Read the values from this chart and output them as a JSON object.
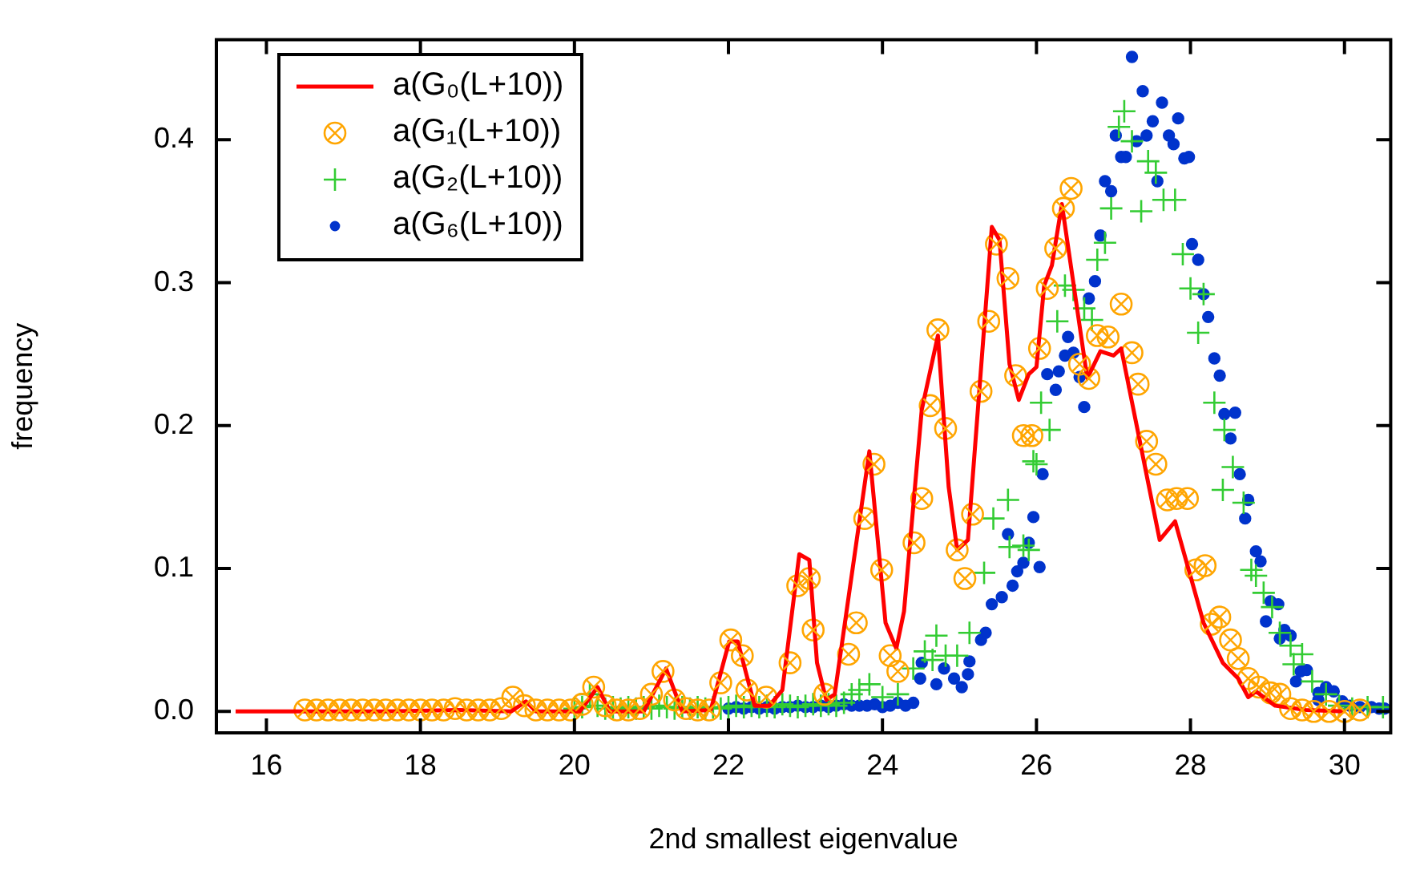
{
  "chart_data": {
    "type": "scatter",
    "xlabel": "2nd smallest eigenvalue",
    "ylabel": "frequency",
    "xlim": [
      15.35,
      30.6
    ],
    "ylim": [
      -0.015,
      0.47
    ],
    "xticks": [
      16,
      18,
      20,
      22,
      24,
      26,
      28,
      30
    ],
    "yticks": [
      {
        "value": 0,
        "label": "0.0"
      },
      0.1,
      0.2,
      0.3,
      0.4
    ],
    "grid": false,
    "legend": "top left",
    "series": [
      {
        "name": "a(G₀(L+10))",
        "type": "line",
        "color": "#ff0000",
        "marker": "none",
        "line_style": "solid",
        "x": [
          15.6,
          16.5,
          17.5,
          18.5,
          19.18,
          19.37,
          19.5,
          20.07,
          20.3,
          20.46,
          20.9,
          21.19,
          21.4,
          21.77,
          22.01,
          22.12,
          22.34,
          22.53,
          22.7,
          22.92,
          23.05,
          23.15,
          23.27,
          23.38,
          23.83,
          24.04,
          24.18,
          24.28,
          24.51,
          24.72,
          24.86,
          24.97,
          25.11,
          25.42,
          25.52,
          25.65,
          25.77,
          25.9,
          26.0,
          26.1,
          26.2,
          26.33,
          26.66,
          26.83,
          27.0,
          27.1,
          27.6,
          27.8,
          28.17,
          28.42,
          28.62,
          28.75,
          28.85,
          29.1,
          29.5,
          30.0
        ],
        "values": [
          0,
          0,
          0,
          0.001,
          0,
          0.007,
          0,
          0,
          0.017,
          0,
          0,
          0.03,
          0,
          0.001,
          0.049,
          0.049,
          0.004,
          0.004,
          0.015,
          0.11,
          0.106,
          0.034,
          0.008,
          0.012,
          0.182,
          0.062,
          0.044,
          0.07,
          0.211,
          0.263,
          0.157,
          0.113,
          0.12,
          0.339,
          0.33,
          0.243,
          0.218,
          0.236,
          0.241,
          0.298,
          0.312,
          0.355,
          0.233,
          0.252,
          0.249,
          0.254,
          0.12,
          0.133,
          0.062,
          0.034,
          0.023,
          0.01,
          0.014,
          0.004,
          0.001,
          0
        ]
      },
      {
        "name": "a(G₁(L+10))",
        "type": "scatter",
        "color": "#ffa500",
        "marker": "circle",
        "x": [
          16.5,
          16.65,
          16.8,
          16.95,
          17.1,
          17.25,
          17.4,
          17.55,
          17.7,
          17.85,
          18.0,
          18.15,
          18.3,
          18.45,
          18.6,
          18.75,
          18.9,
          19.05,
          19.2,
          19.35,
          19.5,
          19.65,
          19.8,
          19.95,
          20.1,
          20.25,
          20.4,
          20.55,
          20.7,
          20.85,
          21.0,
          21.15,
          21.3,
          21.45,
          21.6,
          21.75,
          21.9,
          22.03,
          22.18,
          22.24,
          22.49,
          22.8,
          22.9,
          23.05,
          23.1,
          23.25,
          23.56,
          23.66,
          23.77,
          23.89,
          23.99,
          24.1,
          24.2,
          24.41,
          24.51,
          24.62,
          24.72,
          24.82,
          24.97,
          25.07,
          25.17,
          25.28,
          25.38,
          25.48,
          25.63,
          25.73,
          25.83,
          25.94,
          26.04,
          26.14,
          26.25,
          26.35,
          26.45,
          26.56,
          26.68,
          26.79,
          26.93,
          27.1,
          27.24,
          27.32,
          27.43,
          27.55,
          27.7,
          27.82,
          27.96,
          28.07,
          28.19,
          28.27,
          28.38,
          28.52,
          28.62,
          28.75,
          28.89,
          29.04,
          29.16,
          29.3,
          29.45,
          29.6,
          29.8,
          30.0,
          30.2
        ],
        "values": [
          0.001,
          0.001,
          0.001,
          0.001,
          0.001,
          0.001,
          0.001,
          0.001,
          0.001,
          0.001,
          0.001,
          0.001,
          0.001,
          0.002,
          0.001,
          0.001,
          0.001,
          0.002,
          0.01,
          0.004,
          0.001,
          0.001,
          0.001,
          0.001,
          0.005,
          0.017,
          0.004,
          0.001,
          0.001,
          0.002,
          0.012,
          0.028,
          0.008,
          0.002,
          0.001,
          0.001,
          0.02,
          0.05,
          0.039,
          0.015,
          0.01,
          0.034,
          0.088,
          0.093,
          0.057,
          0.012,
          0.04,
          0.062,
          0.135,
          0.173,
          0.099,
          0.039,
          0.028,
          0.118,
          0.149,
          0.214,
          0.267,
          0.198,
          0.113,
          0.093,
          0.138,
          0.224,
          0.273,
          0.327,
          0.303,
          0.235,
          0.193,
          0.193,
          0.254,
          0.296,
          0.324,
          0.352,
          0.366,
          0.243,
          0.233,
          0.263,
          0.262,
          0.285,
          0.251,
          0.229,
          0.189,
          0.173,
          0.148,
          0.149,
          0.149,
          0.099,
          0.102,
          0.061,
          0.066,
          0.05,
          0.037,
          0.023,
          0.017,
          0.013,
          0.012,
          0.002,
          0.001,
          0,
          0,
          0,
          0.001
        ]
      },
      {
        "name": "a(G₂(L+10))",
        "type": "scatter",
        "color": "#33cc33",
        "marker": "cross",
        "x": [
          20.0,
          20.1,
          20.2,
          20.3,
          20.4,
          20.5,
          20.6,
          20.7,
          20.8,
          20.9,
          21.0,
          21.1,
          21.2,
          21.3,
          21.4,
          21.5,
          21.6,
          21.7,
          21.8,
          21.9,
          22.0,
          22.1,
          22.2,
          22.3,
          22.4,
          22.5,
          22.6,
          22.7,
          22.8,
          22.9,
          23.0,
          23.1,
          23.2,
          23.3,
          23.4,
          23.5,
          23.6,
          23.7,
          23.83,
          24.0,
          24.2,
          24.4,
          24.55,
          24.65,
          24.7,
          24.82,
          24.97,
          25.13,
          25.32,
          25.44,
          25.63,
          25.65,
          25.83,
          25.9,
          25.96,
          26.0,
          26.06,
          26.17,
          26.27,
          26.37,
          26.48,
          26.62,
          26.72,
          26.79,
          26.89,
          26.97,
          27.07,
          27.14,
          27.24,
          27.36,
          27.45,
          27.55,
          27.65,
          27.8,
          27.9,
          28.0,
          28.1,
          28.17,
          28.31,
          28.42,
          28.44,
          28.55,
          28.69,
          28.79,
          28.85,
          28.95,
          29.06,
          29.16,
          29.3,
          29.34,
          29.45,
          29.58,
          29.76,
          29.93,
          30.1,
          30.3,
          30.5
        ],
        "values": [
          0.002,
          0.003,
          0.012,
          0.004,
          0.002,
          0.003,
          0.002,
          0.003,
          0.002,
          0.003,
          0.002,
          0.004,
          0.003,
          0.002,
          0.003,
          0.002,
          0.003,
          0.002,
          0.003,
          0.002,
          0.003,
          0.004,
          0.003,
          0.004,
          0.003,
          0.004,
          0.003,
          0.005,
          0.004,
          0.003,
          0.004,
          0.005,
          0.004,
          0.005,
          0.004,
          0.006,
          0.012,
          0.015,
          0.019,
          0.01,
          0.012,
          0.03,
          0.042,
          0.036,
          0.053,
          0.039,
          0.039,
          0.055,
          0.097,
          0.135,
          0.148,
          0.115,
          0.116,
          0.113,
          0.175,
          0.173,
          0.216,
          0.197,
          0.273,
          0.298,
          0.295,
          0.282,
          0.274,
          0.316,
          0.328,
          0.352,
          0.409,
          0.42,
          0.399,
          0.35,
          0.385,
          0.377,
          0.358,
          0.358,
          0.32,
          0.296,
          0.265,
          0.292,
          0.216,
          0.155,
          0.197,
          0.171,
          0.146,
          0.099,
          0.095,
          0.083,
          0.073,
          0.055,
          0.046,
          0.033,
          0.04,
          0.021,
          0.012,
          0.004,
          0.002,
          0.003,
          0.003
        ]
      },
      {
        "name": "a(G₆(L+10))",
        "type": "scatter",
        "color": "#0033cc",
        "marker": "circle",
        "x": [
          22.0,
          22.1,
          22.2,
          22.3,
          22.4,
          22.5,
          22.6,
          22.7,
          22.8,
          22.9,
          23.0,
          23.1,
          23.2,
          23.3,
          23.4,
          23.5,
          23.6,
          23.7,
          23.8,
          23.9,
          24.0,
          24.1,
          24.2,
          24.3,
          24.4,
          24.49,
          24.51,
          24.7,
          24.8,
          24.93,
          25.03,
          25.11,
          25.13,
          25.28,
          25.34,
          25.42,
          25.55,
          25.63,
          25.69,
          25.75,
          25.83,
          25.9,
          25.96,
          26.04,
          26.08,
          26.14,
          26.25,
          26.29,
          26.37,
          26.41,
          26.48,
          26.56,
          26.62,
          26.68,
          26.76,
          26.83,
          26.89,
          26.97,
          27.03,
          27.1,
          27.16,
          27.24,
          27.3,
          27.38,
          27.43,
          27.51,
          27.57,
          27.63,
          27.72,
          27.78,
          27.84,
          27.92,
          27.98,
          28.02,
          28.1,
          28.17,
          28.23,
          28.31,
          28.38,
          28.44,
          28.52,
          28.58,
          28.64,
          28.71,
          28.75,
          28.85,
          28.91,
          28.98,
          29.04,
          29.14,
          29.16,
          29.22,
          29.3,
          29.37,
          29.43,
          29.51,
          29.66,
          29.66,
          29.76,
          29.86,
          29.97,
          30.07,
          30.2,
          30.35,
          30.45,
          30.52
        ],
        "values": [
          0.002,
          0.003,
          0.002,
          0.003,
          0.002,
          0.003,
          0.002,
          0.003,
          0.003,
          0.004,
          0.003,
          0.003,
          0.004,
          0.003,
          0.004,
          0.005,
          0.004,
          0.004,
          0.004,
          0.005,
          0.003,
          0.004,
          0.006,
          0.004,
          0.006,
          0.023,
          0.034,
          0.019,
          0.03,
          0.023,
          0.017,
          0.026,
          0.035,
          0.05,
          0.055,
          0.075,
          0.08,
          0.124,
          0.088,
          0.098,
          0.104,
          0.118,
          0.136,
          0.101,
          0.166,
          0.236,
          0.225,
          0.238,
          0.249,
          0.262,
          0.251,
          0.234,
          0.213,
          0.289,
          0.301,
          0.333,
          0.371,
          0.364,
          0.403,
          0.388,
          0.388,
          0.458,
          0.399,
          0.434,
          0.403,
          0.413,
          0.371,
          0.426,
          0.403,
          0.397,
          0.415,
          0.387,
          0.388,
          0.327,
          0.316,
          0.292,
          0.276,
          0.247,
          0.235,
          0.208,
          0.191,
          0.209,
          0.166,
          0.135,
          0.148,
          0.112,
          0.105,
          0.063,
          0.077,
          0.075,
          0.051,
          0.057,
          0.053,
          0.021,
          0.028,
          0.029,
          0.008,
          0.013,
          0.017,
          0.014,
          0.007,
          0.004,
          0.003,
          0.003,
          0.002,
          0.002
        ]
      }
    ]
  }
}
